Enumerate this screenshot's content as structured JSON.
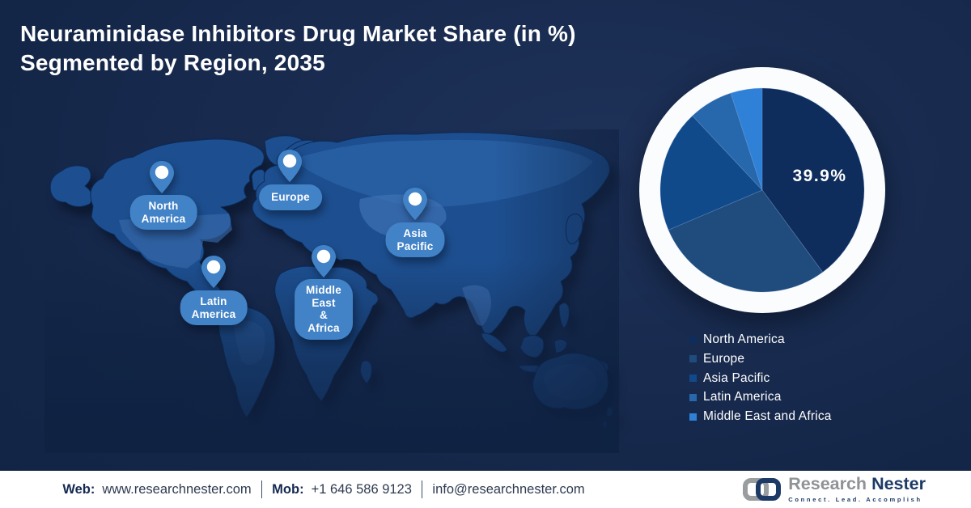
{
  "title": "Neuraminidase Inhibitors Drug Market Share (in %)\nSegmented by Region, 2035",
  "map": {
    "pins": [
      {
        "id": "north-america",
        "label": "North\nAmerica"
      },
      {
        "id": "europe",
        "label": "Europe"
      },
      {
        "id": "asia-pacific",
        "label": "Asia\nPacific"
      },
      {
        "id": "middle-east-africa",
        "label": "Middle East\n& Africa"
      },
      {
        "id": "latin-america",
        "label": "Latin\nAmerica"
      }
    ]
  },
  "chart_data": {
    "type": "pie",
    "title": "Neuraminidase Inhibitors Drug Market Share (in %) Segmented by Region, 2035",
    "series": [
      {
        "name": "North America",
        "value": 39.9,
        "color": "#0e2d5c"
      },
      {
        "name": "Europe",
        "value": 28.7,
        "color": "#1f4b7d"
      },
      {
        "name": "Asia Pacific",
        "value": 19.4,
        "color": "#114a8b"
      },
      {
        "name": "Latin America",
        "value": 7.0,
        "color": "#2767ab"
      },
      {
        "name": "Middle East and Africa",
        "value": 5.0,
        "color": "#2f81d8"
      }
    ],
    "highlight_label": "39.9%",
    "start_angle_deg": -90,
    "direction": "clockwise",
    "legend_position": "bottom-right",
    "ring_color": "#fafcfe"
  },
  "footer": {
    "web_label": "Web:",
    "web_value": "www.researchnester.com",
    "mob_label": "Mob:",
    "mob_value": "+1 646 586 9123",
    "email": "info@researchnester.com"
  },
  "logo": {
    "brand_part1": "Research",
    "brand_part2": "Nester",
    "tagline": "Connect. Lead. Accomplish"
  },
  "colors": {
    "background": "#14264a",
    "map_land": "#1d4f90",
    "map_land_light": "#3f72b5",
    "pin_accent": "#4282c7",
    "ring_white": "#fafcfe",
    "footer_text": "#152a52"
  }
}
